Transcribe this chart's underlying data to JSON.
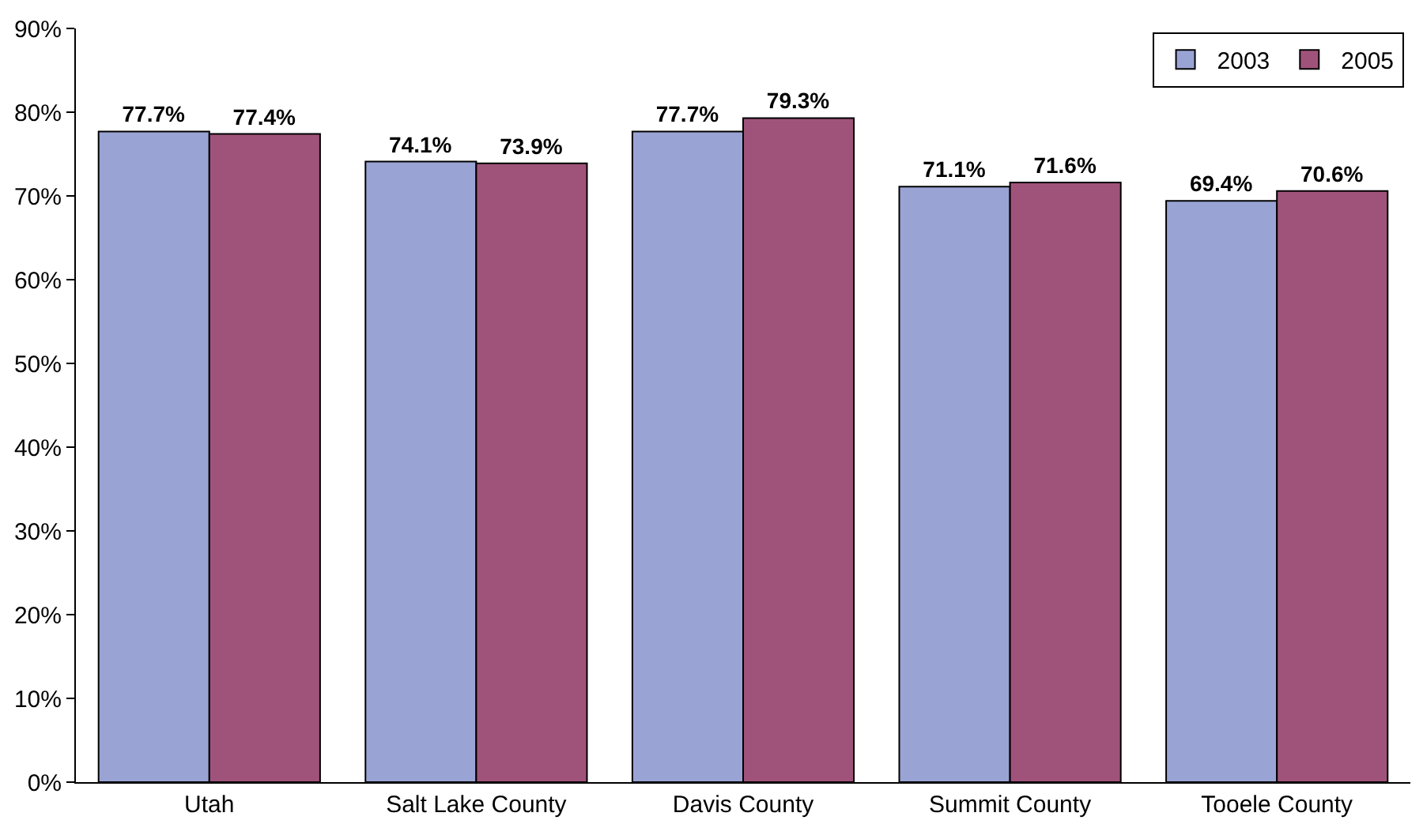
{
  "chart_data": {
    "type": "bar",
    "categories": [
      "Utah",
      "Salt Lake County",
      "Davis County",
      "Summit County",
      "Tooele County"
    ],
    "series": [
      {
        "name": "2003",
        "color": "#9aa4d4",
        "values": [
          77.7,
          74.1,
          77.7,
          71.1,
          69.4
        ],
        "value_labels": [
          "77.7%",
          "74.1%",
          "77.7%",
          "71.1%",
          "69.4%"
        ]
      },
      {
        "name": "2005",
        "color": "#a0537a",
        "values": [
          77.4,
          73.9,
          79.3,
          71.6,
          70.6
        ],
        "value_labels": [
          "77.4%",
          "73.9%",
          "79.3%",
          "71.6%",
          "70.6%"
        ]
      }
    ],
    "ylim": [
      0,
      90
    ],
    "yticks": [
      {
        "value": 0,
        "label": "0%"
      },
      {
        "value": 10,
        "label": "10%"
      },
      {
        "value": 20,
        "label": "20%"
      },
      {
        "value": 30,
        "label": "30%"
      },
      {
        "value": 40,
        "label": "40%"
      },
      {
        "value": 50,
        "label": "50%"
      },
      {
        "value": 60,
        "label": "60%"
      },
      {
        "value": 70,
        "label": "70%"
      },
      {
        "value": 80,
        "label": "80%"
      },
      {
        "value": 90,
        "label": "90%"
      }
    ],
    "legend": "top right"
  }
}
